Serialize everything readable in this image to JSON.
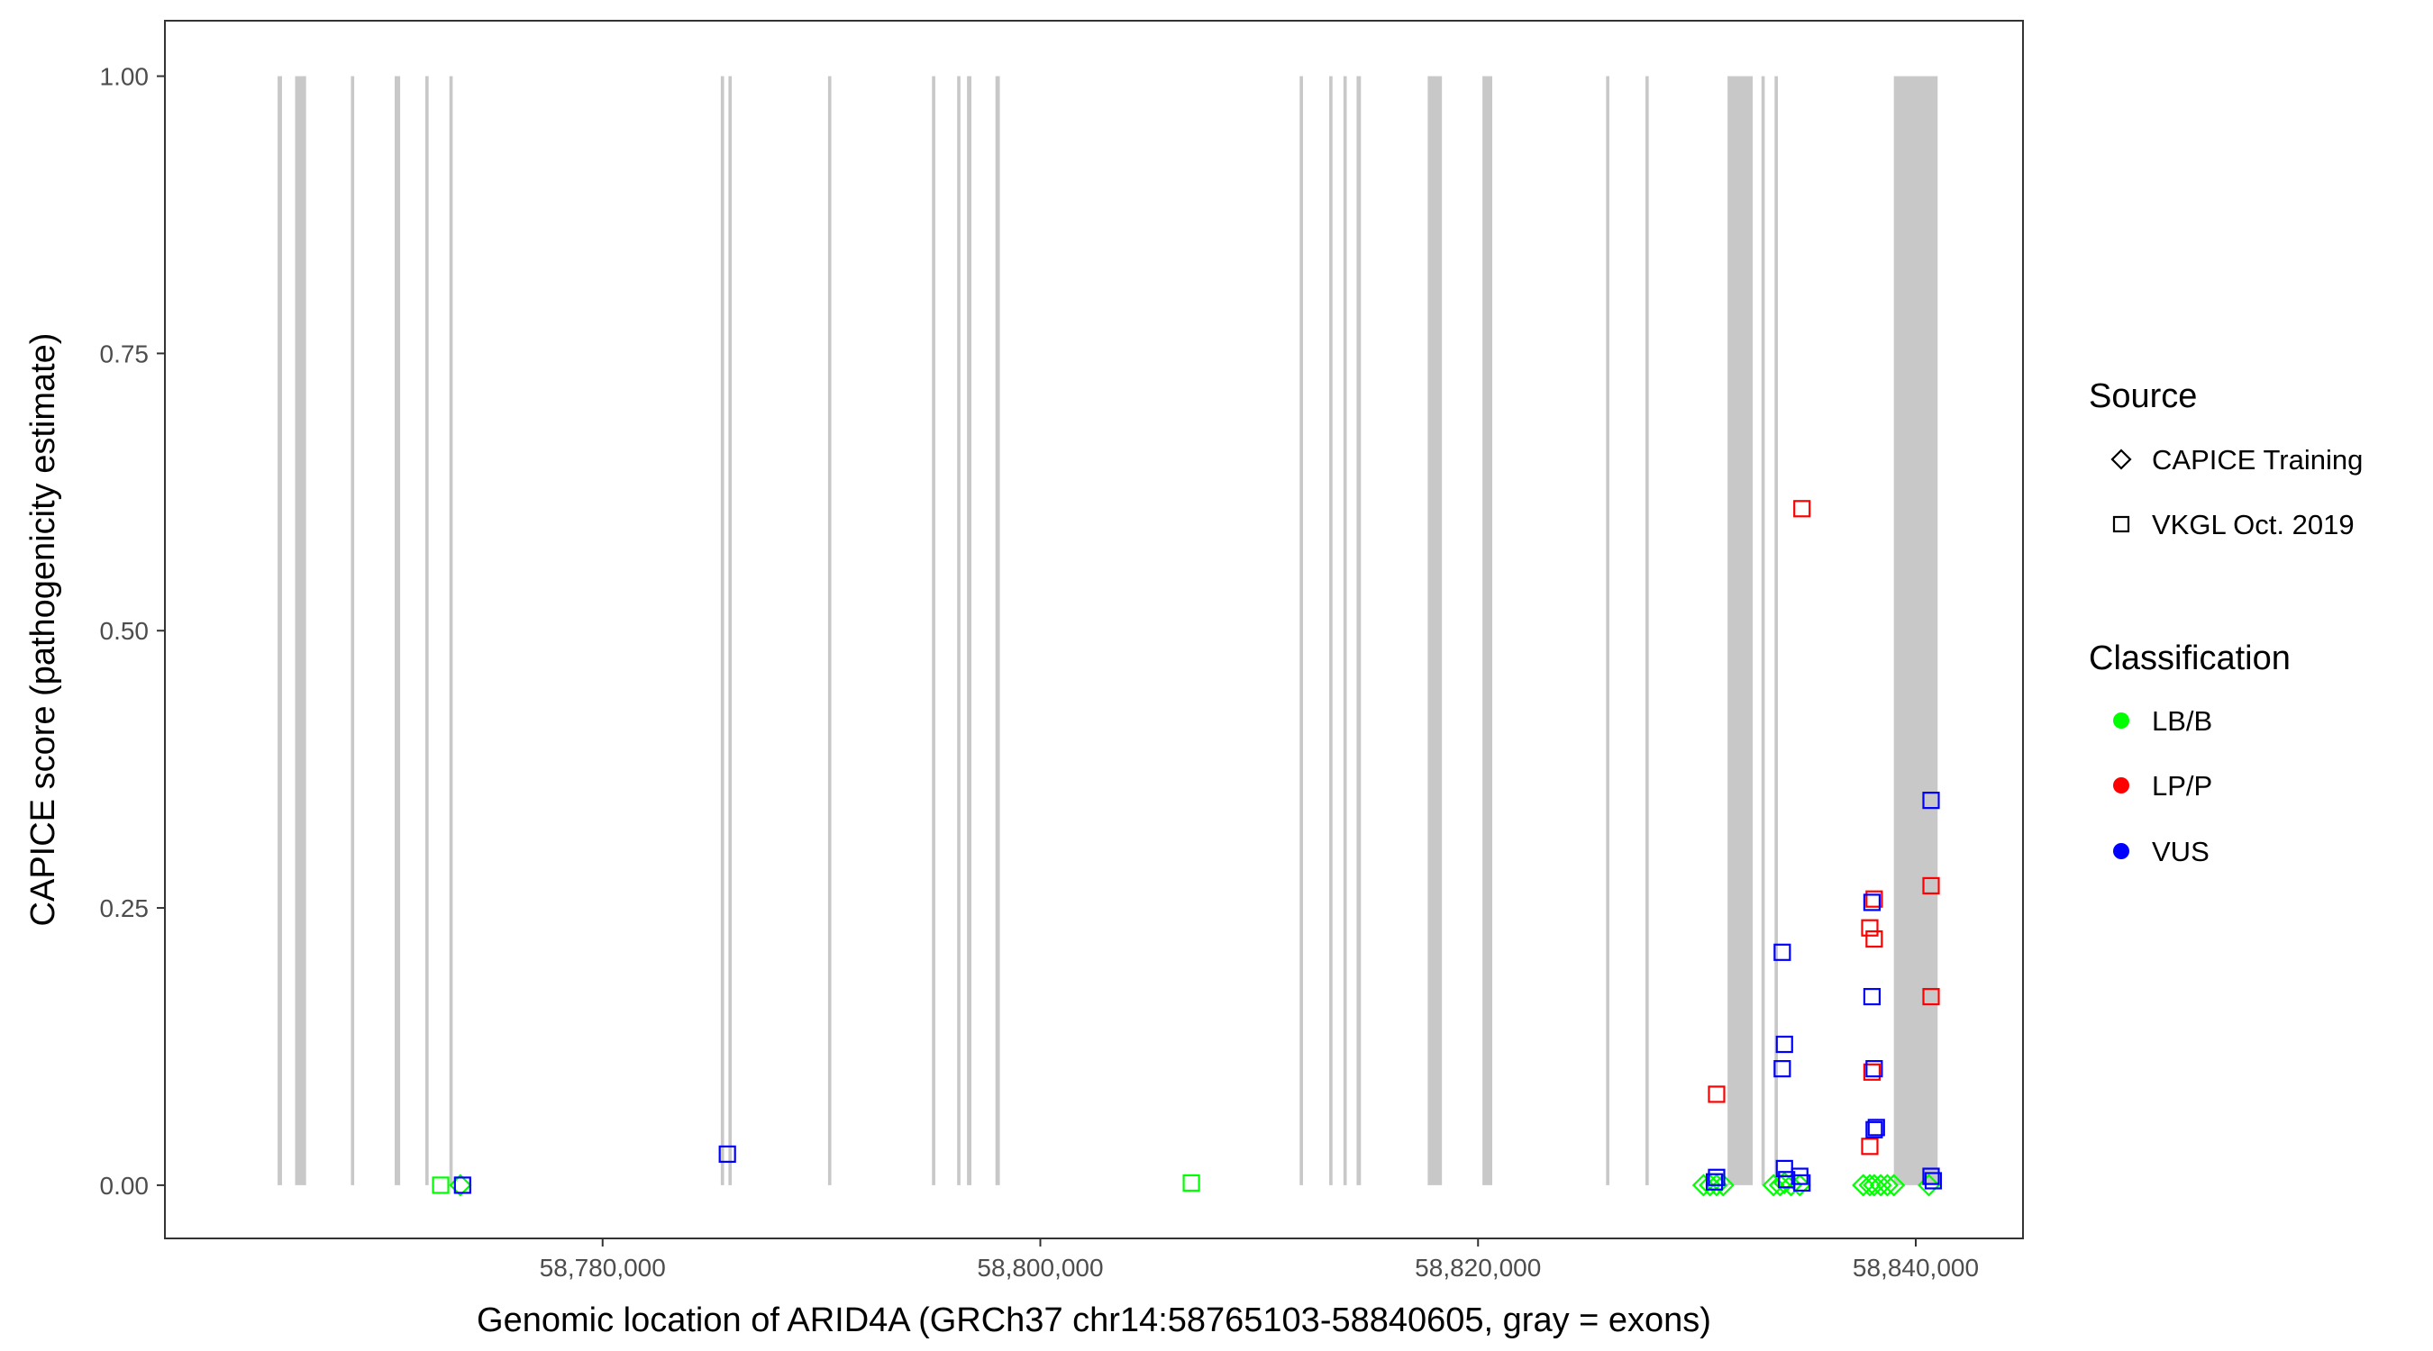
{
  "chart_data": {
    "type": "scatter",
    "title": "",
    "xlabel": "Genomic location of ARID4A (GRCh37 chr14:58765103-58840605, gray = exons)",
    "ylabel": "CAPICE score (pathogenicity estimate)",
    "xlim": [
      58760000,
      58844900
    ],
    "ylim": [
      -0.048,
      1.05
    ],
    "x_ticks": [
      58780000,
      58800000,
      58820000,
      58840000
    ],
    "x_tick_labels": [
      "58,780,000",
      "58,800,000",
      "58,820,000",
      "58,840,000"
    ],
    "y_ticks": [
      0,
      0.25,
      0.5,
      0.75,
      1.0
    ],
    "y_tick_labels": [
      "0.00",
      "0.25",
      "0.50",
      "0.75",
      "1.00"
    ],
    "grid": false,
    "exon_color": "#c8c8c8",
    "exons": [
      [
        58765150,
        58765350
      ],
      [
        58765950,
        58766450
      ],
      [
        58768500,
        58768650
      ],
      [
        58770500,
        58770750
      ],
      [
        58771900,
        58772050
      ],
      [
        58773000,
        58773150
      ],
      [
        58785400,
        58785550
      ],
      [
        58785750,
        58785900
      ],
      [
        58790300,
        58790450
      ],
      [
        58795050,
        58795200
      ],
      [
        58796200,
        58796350
      ],
      [
        58796650,
        58796850
      ],
      [
        58797950,
        58798150
      ],
      [
        58811850,
        58812000
      ],
      [
        58813200,
        58813350
      ],
      [
        58813850,
        58814000
      ],
      [
        58814450,
        58814650
      ],
      [
        58817700,
        58818350
      ],
      [
        58820200,
        58820650
      ],
      [
        58825850,
        58826000
      ],
      [
        58827650,
        58827800
      ],
      [
        58831400,
        58832550
      ],
      [
        58832950,
        58833100
      ],
      [
        58833550,
        58833700
      ],
      [
        58839000,
        58841000
      ]
    ],
    "legends": [
      {
        "title": "Source",
        "entries": [
          {
            "label": "CAPICE Training",
            "shape": "diamond"
          },
          {
            "label": "VKGL Oct. 2019",
            "shape": "square"
          }
        ]
      },
      {
        "title": "Classification",
        "entries": [
          {
            "label": "LB/B",
            "color": "#00ff00"
          },
          {
            "label": "LP/P",
            "color": "#ff0000"
          },
          {
            "label": "VUS",
            "color": "#0000ff"
          }
        ]
      }
    ],
    "legend_position": "right",
    "series": [
      {
        "name": "LB/B",
        "source": "VKGL Oct. 2019",
        "shape": "square",
        "color": "#00ff00",
        "points": [
          [
            58772600,
            0.0
          ],
          [
            58806900,
            0.002
          ]
        ]
      },
      {
        "name": "LB/B",
        "source": "CAPICE Training",
        "shape": "diamond",
        "color": "#00ff00",
        "points": [
          [
            58773500,
            0.0
          ],
          [
            58830300,
            0.0
          ],
          [
            58830600,
            0.0
          ],
          [
            58830900,
            0.0
          ],
          [
            58831200,
            0.0
          ],
          [
            58833500,
            0.0
          ],
          [
            58833800,
            0.0
          ],
          [
            58834000,
            0.002
          ],
          [
            58834300,
            0.0
          ],
          [
            58834700,
            0.0
          ],
          [
            58837600,
            0.0
          ],
          [
            58837900,
            0.0
          ],
          [
            58838100,
            0.0
          ],
          [
            58838400,
            0.0
          ],
          [
            58838700,
            0.0
          ],
          [
            58839000,
            0.0
          ],
          [
            58840600,
            0.0
          ]
        ]
      },
      {
        "name": "LP/P",
        "source": "VKGL Oct. 2019",
        "shape": "square",
        "color": "#ff0000",
        "points": [
          [
            58830900,
            0.082
          ],
          [
            58834800,
            0.61
          ],
          [
            58837900,
            0.035
          ],
          [
            58837900,
            0.232
          ],
          [
            58838000,
            0.102
          ],
          [
            58838100,
            0.222
          ],
          [
            58838100,
            0.258
          ],
          [
            58840700,
            0.27
          ],
          [
            58840700,
            0.17
          ]
        ]
      },
      {
        "name": "VUS",
        "source": "VKGL Oct. 2019",
        "shape": "square",
        "color": "#0000ff",
        "points": [
          [
            58773600,
            0.0
          ],
          [
            58785700,
            0.028
          ],
          [
            58830800,
            0.003
          ],
          [
            58830900,
            0.007
          ],
          [
            58833900,
            0.21
          ],
          [
            58834000,
            0.127
          ],
          [
            58833900,
            0.105
          ],
          [
            58834000,
            0.015
          ],
          [
            58834100,
            0.005
          ],
          [
            58834700,
            0.008
          ],
          [
            58834800,
            0.002
          ],
          [
            58838000,
            0.17
          ],
          [
            58838000,
            0.255
          ],
          [
            58838100,
            0.105
          ],
          [
            58838100,
            0.05
          ],
          [
            58838200,
            0.052
          ],
          [
            58840700,
            0.347
          ],
          [
            58840700,
            0.008
          ],
          [
            58840800,
            0.004
          ]
        ]
      }
    ]
  }
}
